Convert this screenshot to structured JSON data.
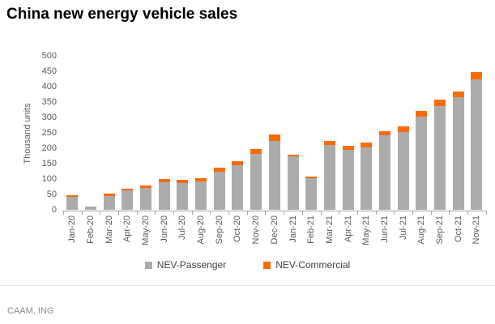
{
  "chart_data": {
    "type": "bar",
    "stacked": true,
    "title": "China new energy vehicle sales",
    "ylabel": "Thousand units",
    "source": "CAAM, ING",
    "ylim": [
      0,
      500
    ],
    "yticks": [
      0,
      50,
      100,
      150,
      200,
      250,
      300,
      350,
      400,
      450,
      500
    ],
    "grid": false,
    "legend_position": "bottom",
    "categories": [
      "Jan-20",
      "Feb-20",
      "Mar-20",
      "Apr-20",
      "May-20",
      "Jun-20",
      "Jul-20",
      "Aug-20",
      "Sep-20",
      "Oct-20",
      "Nov-20",
      "Dec-20",
      "Jan-21",
      "Feb-21",
      "Mar-21",
      "Apr-21",
      "May-21",
      "Jun-21",
      "Jul-21",
      "Aug-21",
      "Sep-21",
      "Oct-21",
      "Nov-21"
    ],
    "series": [
      {
        "name": "NEV-Passenger",
        "color": "#ababab",
        "values": [
          44,
          12,
          47,
          64,
          73,
          92,
          89,
          93,
          124,
          145,
          182,
          224,
          174,
          105,
          213,
          195,
          205,
          243,
          254,
          304,
          338,
          367,
          426
        ]
      },
      {
        "name": "NEV-Commercial",
        "color": "#f96b07",
        "values": [
          6,
          1,
          6,
          7,
          7,
          10,
          10,
          10,
          13,
          15,
          18,
          23,
          6,
          5,
          13,
          13,
          14,
          14,
          18,
          19,
          21,
          18,
          24
        ]
      }
    ]
  }
}
